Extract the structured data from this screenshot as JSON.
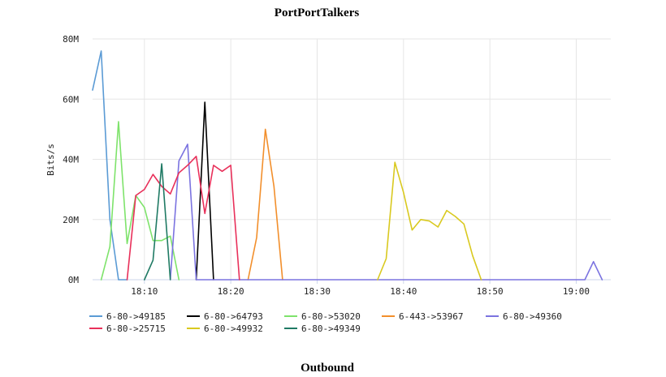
{
  "chart_data": {
    "type": "line",
    "title": "PortPortTalkers",
    "subtitle": "Outbound",
    "xlabel": "",
    "ylabel": "Bits/s",
    "ylim": [
      0,
      80000000
    ],
    "yticks": [
      0,
      20000000,
      40000000,
      60000000,
      80000000
    ],
    "ytick_labels": [
      "0M",
      "20M",
      "40M",
      "60M",
      "80M"
    ],
    "xlim": [
      "18:04",
      "19:04"
    ],
    "xticks": [
      "18:10",
      "18:20",
      "18:30",
      "18:40",
      "18:50",
      "19:00"
    ],
    "grid": true,
    "legend_position": "bottom-left",
    "series": [
      {
        "name": "6-80->49185",
        "color": "#5b9bd5",
        "x": [
          "18:04",
          "18:05",
          "18:06",
          "18:07",
          "18:08"
        ],
        "y": [
          63000000,
          76000000,
          20000000,
          0,
          0
        ]
      },
      {
        "name": "6-80->64793",
        "color": "#000000",
        "x": [
          "18:16",
          "18:17",
          "18:18"
        ],
        "y": [
          0,
          59000000,
          0
        ]
      },
      {
        "name": "6-80->53020",
        "color": "#7ee36b",
        "x": [
          "18:05",
          "18:06",
          "18:07",
          "18:08",
          "18:09",
          "18:10",
          "18:11",
          "18:12",
          "18:13",
          "18:14"
        ],
        "y": [
          0,
          11000000,
          52500000,
          12000000,
          28000000,
          24000000,
          13000000,
          13000000,
          14500000,
          0
        ]
      },
      {
        "name": "6-443->53967",
        "color": "#f28f2c",
        "x": [
          "18:22",
          "18:23",
          "18:24",
          "18:25",
          "18:26"
        ],
        "y": [
          0,
          14000000,
          50000000,
          31000000,
          0
        ]
      },
      {
        "name": "6-80->49360",
        "color": "#7b73e0",
        "x": [
          "18:13",
          "18:14",
          "18:15",
          "18:16",
          "19:01",
          "19:02",
          "19:03"
        ],
        "y": [
          0,
          39500000,
          45000000,
          0,
          0,
          6000000,
          0
        ]
      },
      {
        "name": "6-80->25715",
        "color": "#e8305a",
        "x": [
          "18:08",
          "18:09",
          "18:10",
          "18:11",
          "18:12",
          "18:13",
          "18:14",
          "18:15",
          "18:16",
          "18:17",
          "18:18",
          "18:19",
          "18:20",
          "18:21"
        ],
        "y": [
          0,
          28000000,
          30000000,
          35000000,
          31000000,
          28500000,
          35500000,
          38000000,
          41000000,
          22000000,
          38000000,
          36000000,
          38000000,
          0
        ]
      },
      {
        "name": "6-80->49932",
        "color": "#d9c91f",
        "x": [
          "18:37",
          "18:38",
          "18:39",
          "18:40",
          "18:41",
          "18:42",
          "18:43",
          "18:44",
          "18:45",
          "18:46",
          "18:47",
          "18:48",
          "18:49"
        ],
        "y": [
          0,
          7000000,
          39000000,
          29000000,
          16500000,
          20000000,
          19500000,
          17500000,
          23000000,
          21000000,
          18500000,
          8000000,
          0
        ]
      },
      {
        "name": "6-80->49349",
        "color": "#1f7a64",
        "x": [
          "18:10",
          "18:11",
          "18:12",
          "18:13"
        ],
        "y": [
          0,
          6500000,
          38500000,
          0
        ]
      }
    ]
  }
}
